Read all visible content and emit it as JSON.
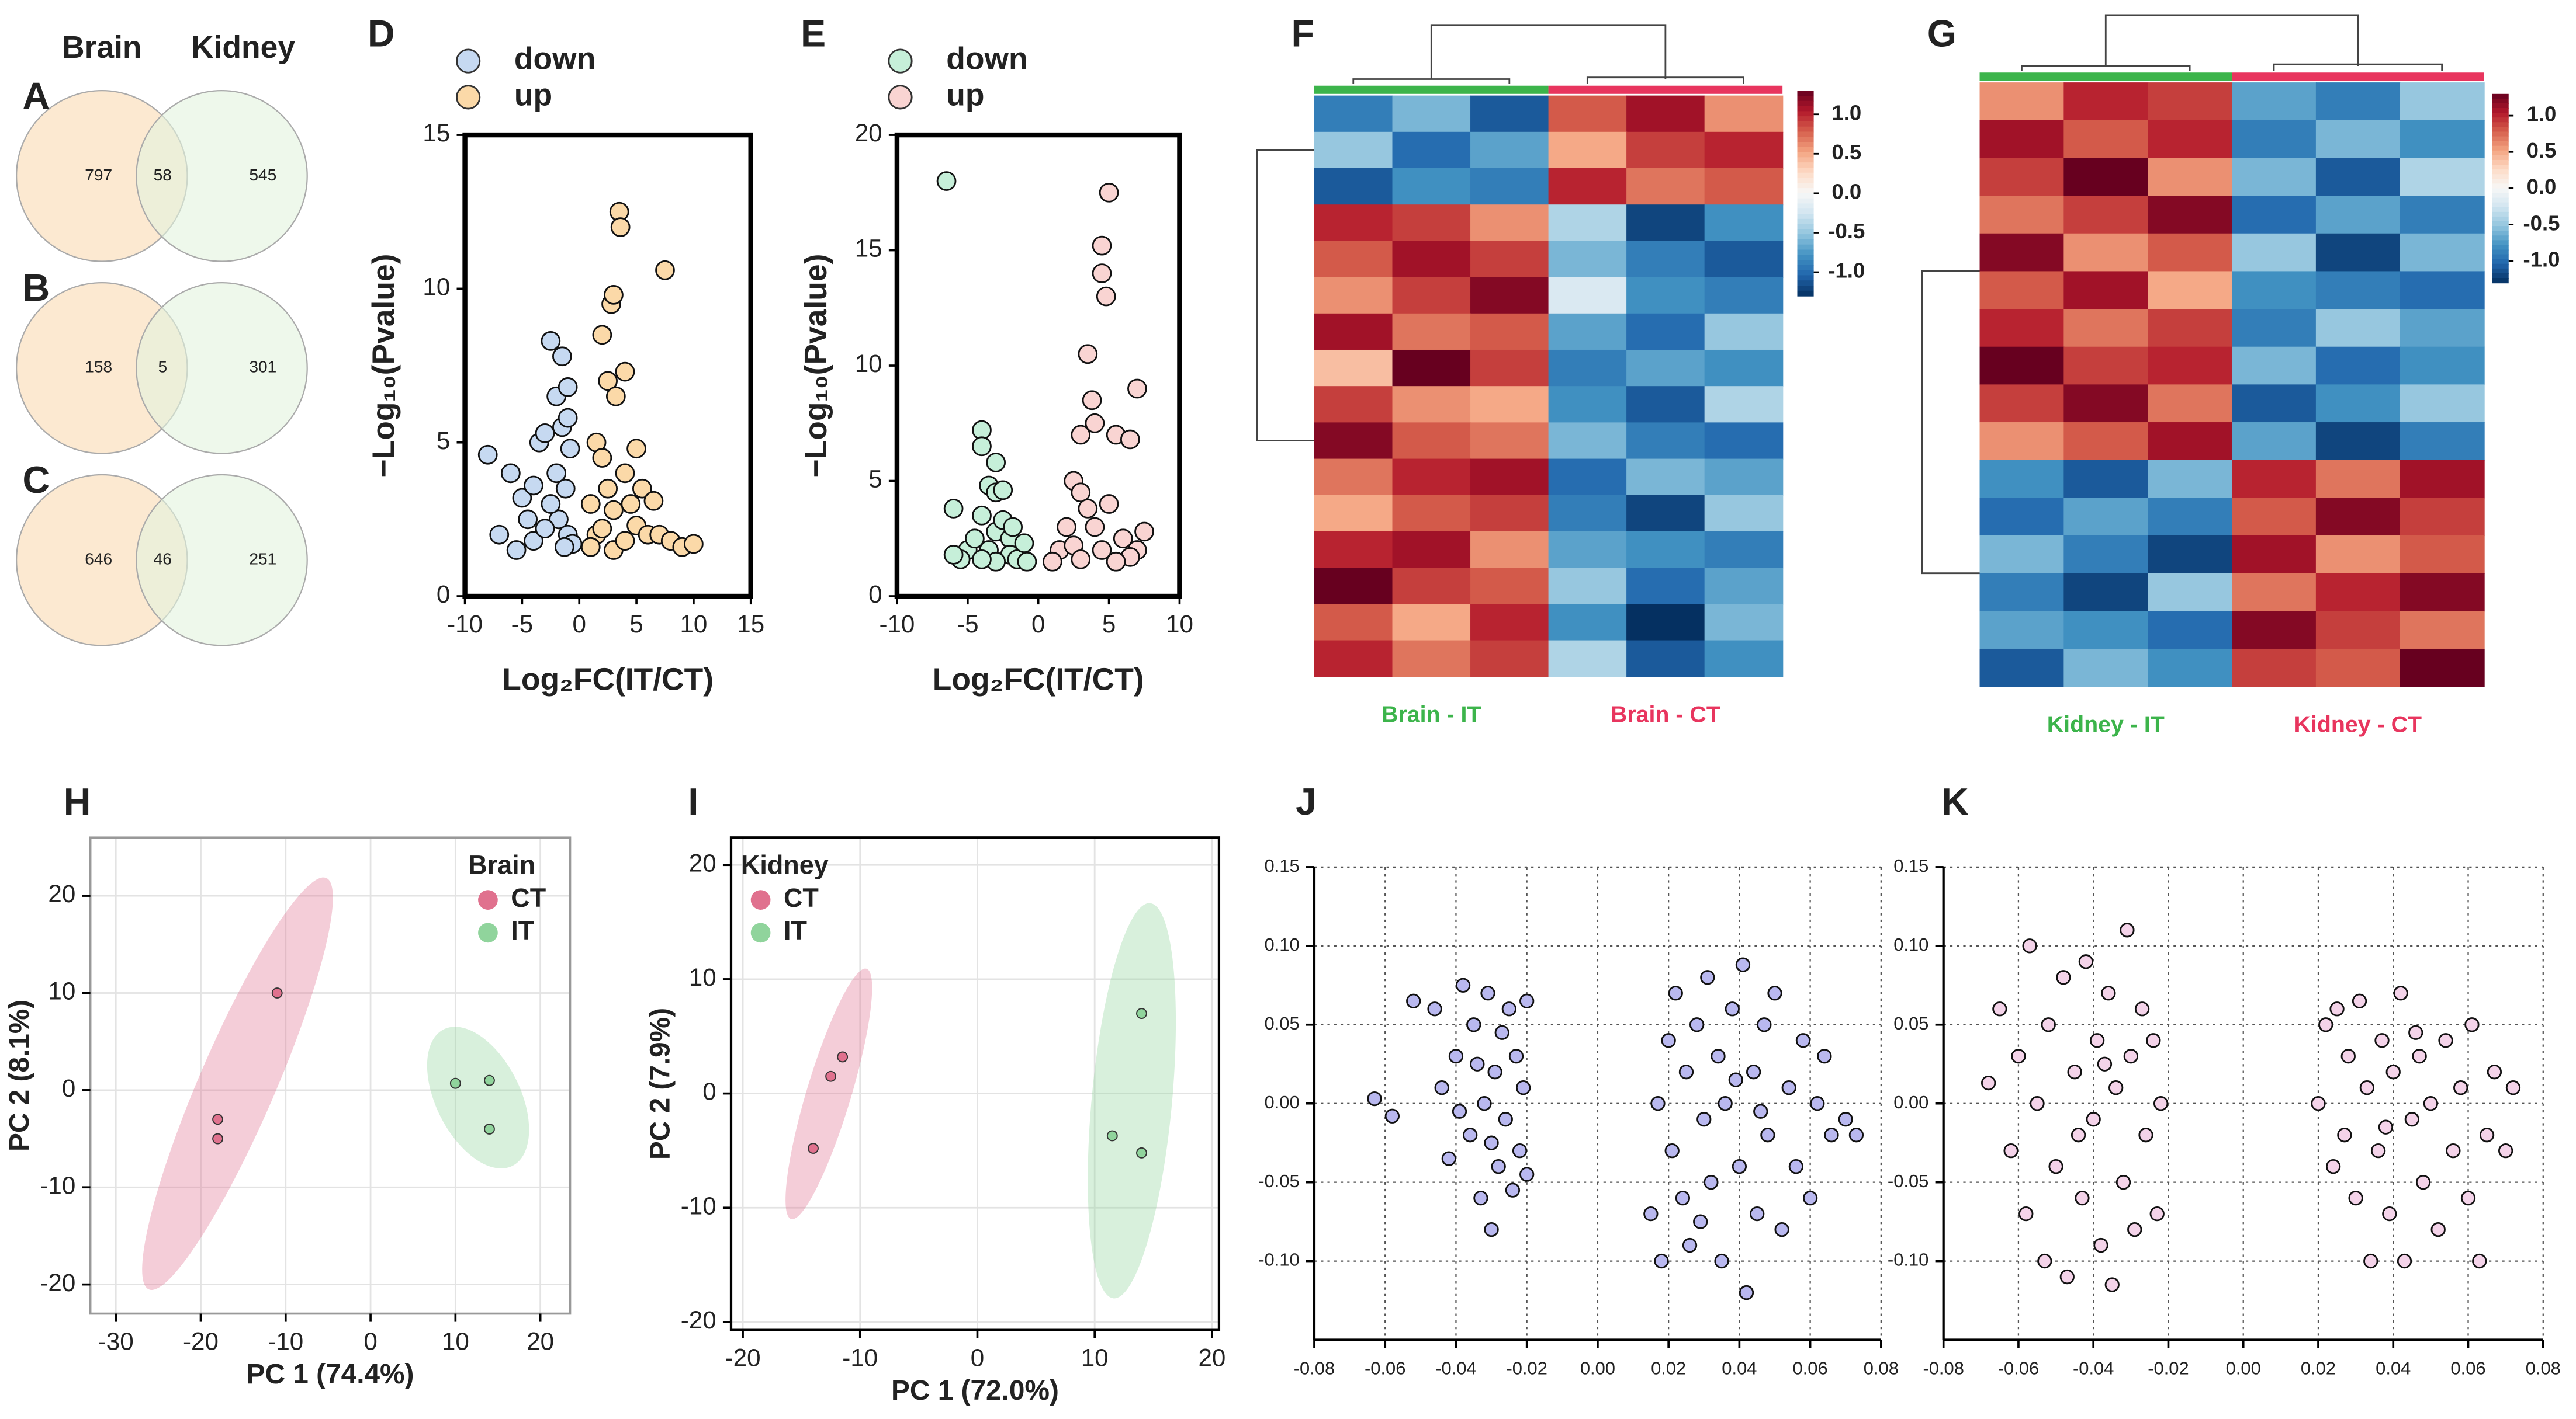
{
  "chart_data": [
    {
      "type": "venn",
      "panel_labels": [
        "A",
        "B",
        "C"
      ],
      "sets": [
        "Brain",
        "Kidney"
      ],
      "colors": [
        "#fbe4c6",
        "#e3f3de"
      ],
      "values": [
        [
          797,
          58,
          545
        ],
        [
          158,
          5,
          301
        ],
        [
          646,
          46,
          251
        ]
      ]
    },
    {
      "type": "scatter",
      "label": "D",
      "xlabel": "Log₂FC(IT/CT)",
      "ylabel": "−Log₁₀(Pvalue)",
      "xlim": [
        -10,
        15
      ],
      "xticks": [
        -10,
        -5,
        0,
        5,
        10,
        15
      ],
      "ylim": [
        0,
        15
      ],
      "yticks": [
        0,
        5,
        10,
        15
      ],
      "frame": true,
      "legend": "above",
      "series": [
        {
          "name": "down",
          "color": "#c6d9f1",
          "x": [
            -8,
            -7,
            -6,
            -5.5,
            -5,
            -4.5,
            -4,
            -3.5,
            -3,
            -2.5,
            -2,
            -2,
            -1.8,
            -1.5,
            -1.5,
            -1.2,
            -1,
            -1,
            -0.8,
            -0.6,
            -1.3,
            -2.5,
            -3,
            -4,
            -1
          ],
          "values": [
            4.6,
            2,
            4,
            1.5,
            3.2,
            2.5,
            1.8,
            5,
            5.3,
            8.3,
            6.5,
            4,
            2.5,
            7.8,
            5.5,
            3.5,
            6.8,
            2,
            4.8,
            1.7,
            1.6,
            3,
            2.2,
            3.6,
            5.8
          ]
        },
        {
          "name": "up",
          "color": "#fbd9a8",
          "x": [
            3.5,
            3.6,
            7.5,
            2.8,
            3,
            2,
            2.5,
            4,
            3.2,
            1.5,
            2,
            1,
            1.5,
            2.5,
            3,
            4,
            4.5,
            5,
            5.5,
            6,
            6.5,
            7,
            8,
            9,
            10,
            3,
            1,
            2,
            4,
            5
          ],
          "values": [
            12.5,
            12,
            10.6,
            9.5,
            9.8,
            8.5,
            7,
            7.3,
            6.5,
            5,
            4.5,
            3,
            2,
            3.5,
            2.8,
            4,
            3,
            2.3,
            3.5,
            2,
            3.1,
            2,
            1.8,
            1.6,
            1.7,
            1.5,
            1.6,
            2.2,
            1.8,
            4.8
          ]
        }
      ]
    },
    {
      "type": "scatter",
      "label": "E",
      "xlabel": "Log₂FC(IT/CT)",
      "ylabel": "−Log₁₀(Pvalue)",
      "xlim": [
        -10,
        10
      ],
      "xticks": [
        -10,
        -5,
        0,
        5,
        10
      ],
      "ylim": [
        0,
        20
      ],
      "yticks": [
        0,
        5,
        10,
        15,
        20
      ],
      "frame": true,
      "legend": "above",
      "series": [
        {
          "name": "down",
          "color": "#c6efd9",
          "x": [
            -6.5,
            -4,
            -4,
            -3.5,
            -3,
            -3,
            -2.5,
            -6,
            -5,
            -4.5,
            -4,
            -3.5,
            -3,
            -2.5,
            -2,
            -2,
            -1.5,
            -1,
            -0.8,
            -5.5,
            -3,
            -1.8,
            -6,
            -4
          ],
          "values": [
            18,
            7.2,
            6.5,
            4.8,
            5.8,
            4.5,
            4.6,
            3.8,
            2,
            2.5,
            3.5,
            2,
            2.8,
            3.3,
            2.5,
            1.8,
            1.6,
            2.3,
            1.5,
            1.6,
            1.5,
            3,
            1.8,
            1.6
          ]
        },
        {
          "name": "up",
          "color": "#f9d4d2",
          "x": [
            5,
            4.5,
            4.5,
            4.8,
            3.5,
            7,
            3.8,
            4,
            3,
            5.5,
            6.5,
            2.5,
            3,
            3.5,
            4,
            5,
            1.5,
            2,
            2.5,
            6,
            7,
            7.5,
            6.5,
            1,
            3,
            4.5,
            5.5
          ],
          "values": [
            17.5,
            15.2,
            14,
            13,
            10.5,
            9,
            8.5,
            7.5,
            7,
            7,
            6.8,
            5,
            4.5,
            3.8,
            3,
            4,
            2,
            3,
            2.2,
            2.5,
            2,
            2.8,
            1.7,
            1.5,
            1.6,
            2,
            1.5
          ]
        }
      ]
    },
    {
      "type": "heatmap",
      "label": "F",
      "clim": [
        -1.3,
        1.3
      ],
      "cticks": [
        {
          "value": 1,
          "label": "1.0"
        },
        0.5,
        {
          "value": 0,
          "label": "0.0"
        },
        -0.5,
        {
          "value": -1,
          "label": "-1.0"
        }
      ],
      "groups": [
        {
          "name": "Brain - IT",
          "color": "#3cb44b"
        },
        {
          "name": "Brain - CT",
          "color": "#e8355e"
        }
      ],
      "values": [
        [
          -0.9,
          -0.6,
          -1.1,
          0.8,
          1.1,
          0.6
        ],
        [
          -0.5,
          -1.0,
          -0.7,
          0.5,
          0.9,
          1.0
        ],
        [
          -1.1,
          -0.8,
          -0.9,
          1.0,
          0.7,
          0.8
        ],
        [
          1.0,
          0.9,
          0.6,
          -0.4,
          -1.2,
          -0.8
        ],
        [
          0.8,
          1.1,
          0.9,
          -0.6,
          -0.9,
          -1.1
        ],
        [
          0.6,
          0.9,
          1.2,
          -0.2,
          -0.8,
          -0.9
        ],
        [
          1.1,
          0.7,
          0.8,
          -0.7,
          -1.0,
          -0.5
        ],
        [
          0.4,
          1.3,
          0.9,
          -0.9,
          -0.7,
          -0.8
        ],
        [
          0.9,
          0.6,
          0.5,
          -0.8,
          -1.1,
          -0.4
        ],
        [
          1.2,
          0.8,
          0.7,
          -0.6,
          -0.9,
          -1.0
        ],
        [
          0.7,
          1.0,
          1.1,
          -1.0,
          -0.6,
          -0.7
        ],
        [
          0.5,
          0.8,
          0.9,
          -0.9,
          -1.2,
          -0.5
        ],
        [
          1.0,
          1.1,
          0.6,
          -0.7,
          -0.8,
          -0.9
        ],
        [
          1.3,
          0.9,
          0.8,
          -0.5,
          -1.0,
          -0.7
        ],
        [
          0.8,
          0.5,
          1.0,
          -0.8,
          -1.3,
          -0.6
        ],
        [
          1.0,
          0.7,
          0.9,
          -0.4,
          -1.1,
          -0.8
        ]
      ]
    },
    {
      "type": "heatmap",
      "label": "G",
      "clim": [
        -1.3,
        1.3
      ],
      "cticks": [
        {
          "value": 1,
          "label": "1.0"
        },
        0.5,
        {
          "value": 0,
          "label": "0.0"
        },
        -0.5,
        {
          "value": -1,
          "label": "-1.0"
        }
      ],
      "groups": [
        {
          "name": "Kidney - IT",
          "color": "#3cb44b"
        },
        {
          "name": "Kidney - CT",
          "color": "#e8355e"
        }
      ],
      "values": [
        [
          0.6,
          1.0,
          0.9,
          -0.7,
          -0.9,
          -0.5
        ],
        [
          1.1,
          0.8,
          1.0,
          -0.9,
          -0.6,
          -0.8
        ],
        [
          0.9,
          1.3,
          0.6,
          -0.6,
          -1.1,
          -0.4
        ],
        [
          0.7,
          0.9,
          1.2,
          -1.0,
          -0.7,
          -0.9
        ],
        [
          1.2,
          0.6,
          0.8,
          -0.5,
          -1.2,
          -0.6
        ],
        [
          0.8,
          1.1,
          0.5,
          -0.8,
          -0.9,
          -1.0
        ],
        [
          1.0,
          0.7,
          0.9,
          -0.9,
          -0.5,
          -0.7
        ],
        [
          1.3,
          0.9,
          1.0,
          -0.6,
          -1.0,
          -0.8
        ],
        [
          0.9,
          1.2,
          0.7,
          -1.1,
          -0.8,
          -0.5
        ],
        [
          0.6,
          0.8,
          1.1,
          -0.7,
          -1.2,
          -0.9
        ],
        [
          -0.8,
          -1.1,
          -0.6,
          1.0,
          0.7,
          1.1
        ],
        [
          -1.0,
          -0.7,
          -0.9,
          0.8,
          1.2,
          0.9
        ],
        [
          -0.6,
          -0.9,
          -1.2,
          1.1,
          0.6,
          0.8
        ],
        [
          -0.9,
          -1.2,
          -0.5,
          0.7,
          1.0,
          1.2
        ],
        [
          -0.7,
          -0.8,
          -1.0,
          1.2,
          0.9,
          0.7
        ],
        [
          -1.1,
          -0.6,
          -0.8,
          0.9,
          0.8,
          1.3
        ]
      ]
    },
    {
      "type": "scatter",
      "label": "H",
      "xlabel": "PC 1 (74.4%)",
      "ylabel": "PC 2 (8.1%)",
      "xlim": [
        -33,
        23.5
      ],
      "xticks": [
        -30,
        -20,
        -10,
        0,
        10,
        20
      ],
      "ylim": [
        -23,
        26
      ],
      "yticks": [
        -20,
        -10,
        0,
        10,
        20
      ],
      "grid": true,
      "grid_style": "solid",
      "frame": true,
      "frame_color": "#999",
      "ellipses": true,
      "legend": "upper right",
      "legend_title": "Brain",
      "series": [
        {
          "name": "CT",
          "color": "#e0718e",
          "x": [
            -18,
            -18,
            -11
          ],
          "values": [
            -3,
            -5,
            10
          ]
        },
        {
          "name": "IT",
          "color": "#90d49c",
          "x": [
            10,
            14,
            14
          ],
          "values": [
            0.7,
            1,
            -4
          ]
        }
      ]
    },
    {
      "type": "scatter",
      "label": "I",
      "xlabel": "PC 1 (72.0%)",
      "ylabel": "PC 2 (7.9%)",
      "xlim": [
        -21,
        20.6
      ],
      "xticks": [
        -20,
        -10,
        0,
        10,
        20
      ],
      "ylim": [
        -20.7,
        22.4
      ],
      "yticks": [
        -20,
        -10,
        0,
        10,
        20
      ],
      "grid": true,
      "grid_style": "solid",
      "frame": true,
      "frame_color": "#000",
      "ellipses": true,
      "legend": "upper left",
      "legend_title": "Kidney",
      "series": [
        {
          "name": "CT",
          "color": "#e0718e",
          "x": [
            -14,
            -12.5,
            -11.5
          ],
          "values": [
            -4.8,
            1.5,
            3.2
          ]
        },
        {
          "name": "IT",
          "color": "#90d49c",
          "x": [
            11.5,
            14,
            14
          ],
          "values": [
            -3.7,
            7,
            -5.2
          ]
        }
      ]
    },
    {
      "type": "scatter",
      "label": "J",
      "xlim": [
        -0.08,
        0.08
      ],
      "xticks": [
        -0.08,
        -0.06,
        -0.04,
        -0.02,
        {
          "value": 0,
          "label": "0.00"
        },
        0.02,
        0.04,
        0.06,
        0.08
      ],
      "ylim": [
        -0.15,
        0.15
      ],
      "yticks": [
        {
          "value": -0.1,
          "label": "-0.10"
        },
        -0.05,
        {
          "value": 0,
          "label": "0.00"
        },
        0.05,
        {
          "value": 0.1,
          "label": "0.10"
        },
        0.15
      ],
      "grid": true,
      "grid_style": "dotted",
      "series": [
        {
          "color": "#b9b8ef",
          "x": [
            -0.063,
            -0.058,
            -0.052,
            -0.046,
            -0.044,
            -0.042,
            -0.04,
            -0.038,
            -0.036,
            -0.035,
            -0.033,
            -0.032,
            -0.031,
            -0.03,
            -0.029,
            -0.028,
            -0.027,
            -0.026,
            -0.025,
            -0.024,
            -0.023,
            -0.022,
            -0.021,
            -0.02,
            -0.02,
            -0.034,
            -0.039,
            -0.03,
            0.015,
            0.017,
            0.018,
            0.02,
            0.021,
            0.022,
            0.024,
            0.025,
            0.026,
            0.028,
            0.03,
            0.031,
            0.032,
            0.034,
            0.035,
            0.036,
            0.038,
            0.04,
            0.041,
            0.042,
            0.044,
            0.045,
            0.047,
            0.048,
            0.05,
            0.052,
            0.054,
            0.056,
            0.058,
            0.06,
            0.062,
            0.064,
            0.066,
            0.07,
            0.073,
            0.039,
            0.029,
            0.046
          ],
          "values": [
            0.003,
            -0.008,
            0.065,
            0.06,
            0.01,
            -0.035,
            0.03,
            0.075,
            -0.02,
            0.05,
            -0.06,
            0.0,
            0.07,
            -0.08,
            0.02,
            -0.04,
            0.045,
            -0.01,
            0.06,
            -0.055,
            0.03,
            -0.03,
            0.01,
            0.065,
            -0.045,
            0.025,
            -0.005,
            -0.025,
            -0.07,
            0.0,
            -0.1,
            0.04,
            -0.03,
            0.07,
            -0.06,
            0.02,
            -0.09,
            0.05,
            -0.01,
            0.08,
            -0.05,
            0.03,
            -0.1,
            0.0,
            0.06,
            -0.04,
            0.088,
            -0.12,
            0.02,
            -0.07,
            0.05,
            -0.02,
            0.07,
            -0.08,
            0.01,
            -0.04,
            0.04,
            -0.06,
            0.0,
            0.03,
            -0.02,
            -0.01,
            -0.02,
            0.015,
            -0.075,
            -0.005
          ]
        }
      ]
    },
    {
      "type": "scatter",
      "label": "K",
      "xlim": [
        -0.08,
        0.08
      ],
      "xticks": [
        -0.08,
        -0.06,
        -0.04,
        -0.02,
        {
          "value": 0,
          "label": "0.00"
        },
        0.02,
        0.04,
        0.06,
        0.08
      ],
      "ylim": [
        -0.15,
        0.15
      ],
      "yticks": [
        {
          "value": -0.1,
          "label": "-0.10"
        },
        -0.05,
        {
          "value": 0,
          "label": "0.00"
        },
        0.05,
        {
          "value": 0.1,
          "label": "0.10"
        },
        0.15
      ],
      "grid": true,
      "grid_style": "dotted",
      "series": [
        {
          "color": "#f4d3e9",
          "x": [
            -0.068,
            -0.065,
            -0.062,
            -0.06,
            -0.058,
            -0.057,
            -0.055,
            -0.053,
            -0.052,
            -0.05,
            -0.048,
            -0.047,
            -0.045,
            -0.043,
            -0.042,
            -0.04,
            -0.039,
            -0.038,
            -0.036,
            -0.035,
            -0.034,
            -0.032,
            -0.031,
            -0.03,
            -0.029,
            -0.027,
            -0.026,
            -0.024,
            -0.023,
            -0.022,
            -0.044,
            -0.037,
            0.02,
            0.022,
            0.024,
            0.025,
            0.027,
            0.028,
            0.03,
            0.031,
            0.033,
            0.034,
            0.036,
            0.037,
            0.039,
            0.04,
            0.042,
            0.043,
            0.045,
            0.047,
            0.048,
            0.05,
            0.052,
            0.054,
            0.056,
            0.058,
            0.06,
            0.061,
            0.063,
            0.065,
            0.067,
            0.07,
            0.072,
            0.038,
            0.046
          ],
          "values": [
            0.013,
            0.06,
            -0.03,
            0.03,
            -0.07,
            0.1,
            0.0,
            -0.1,
            0.05,
            -0.04,
            0.08,
            -0.11,
            0.02,
            -0.06,
            0.09,
            -0.01,
            0.04,
            -0.09,
            0.07,
            -0.115,
            0.01,
            -0.05,
            0.11,
            0.03,
            -0.08,
            0.06,
            -0.02,
            0.04,
            -0.07,
            0.0,
            -0.02,
            0.025,
            0.0,
            0.05,
            -0.04,
            0.06,
            -0.02,
            0.03,
            -0.06,
            0.065,
            0.01,
            -0.1,
            -0.03,
            0.04,
            -0.07,
            0.02,
            0.07,
            -0.1,
            -0.01,
            0.03,
            -0.05,
            0.0,
            -0.08,
            0.04,
            -0.03,
            0.01,
            -0.06,
            0.05,
            -0.1,
            -0.02,
            0.02,
            -0.03,
            0.01,
            -0.015,
            0.045
          ]
        }
      ]
    }
  ]
}
